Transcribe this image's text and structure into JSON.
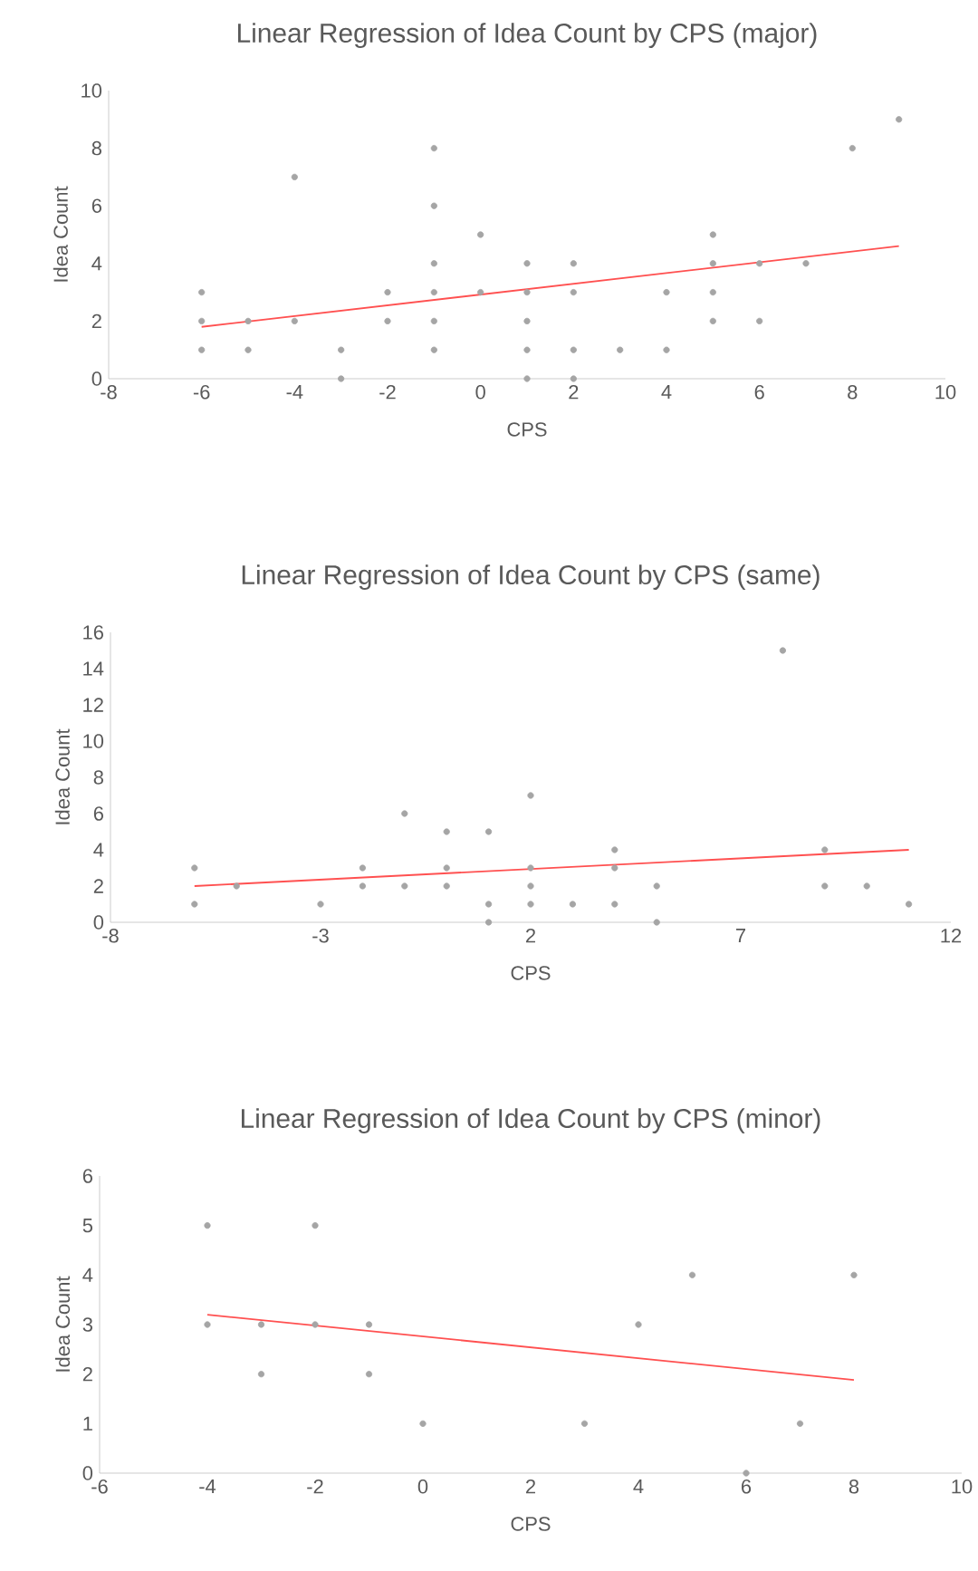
{
  "chart_data": [
    {
      "type": "scatter",
      "title": "Linear Regression of Idea Count by CPS (major)",
      "xlabel": "CPS",
      "ylabel": "Idea Count",
      "xlim": [
        -8,
        10
      ],
      "ylim": [
        0,
        10
      ],
      "xticks": [
        -8,
        -6,
        -4,
        -2,
        0,
        2,
        4,
        6,
        8,
        10
      ],
      "yticks": [
        0,
        2,
        4,
        6,
        8,
        10
      ],
      "marker": "circle",
      "series": [
        {
          "color": "#a5a5a5",
          "x": [
            -6,
            -6,
            -6,
            -5,
            -5,
            -4,
            -4,
            -3,
            -3,
            -2,
            -2,
            -1,
            -1,
            -1,
            -1,
            -1,
            -1,
            0,
            0,
            1,
            1,
            1,
            1,
            1,
            2,
            2,
            2,
            2,
            3,
            4,
            4,
            5,
            5,
            5,
            5,
            6,
            6,
            7,
            8,
            9
          ],
          "values": [
            3,
            2,
            1,
            2,
            1,
            7,
            2,
            1,
            0,
            3,
            2,
            8,
            6,
            4,
            3,
            2,
            1,
            5,
            3,
            4,
            3,
            2,
            1,
            0,
            4,
            3,
            1,
            0,
            1,
            3,
            1,
            5,
            4,
            3,
            2,
            4,
            2,
            4,
            8,
            9
          ]
        },
        {
          "type": "line",
          "color": "#ff5050",
          "marker": "none",
          "x": [
            -6,
            9
          ],
          "values": [
            1.8,
            4.6
          ]
        }
      ]
    },
    {
      "type": "scatter",
      "title": "Linear Regression of Idea Count by CPS (same)",
      "xlabel": "CPS",
      "ylabel": "Idea Count",
      "xlim": [
        -8,
        12
      ],
      "ylim": [
        0,
        16
      ],
      "xticks": [
        -8,
        -3,
        2,
        7,
        12
      ],
      "yticks": [
        0,
        2,
        4,
        6,
        8,
        10,
        12,
        14,
        16
      ],
      "marker": "circle",
      "series": [
        {
          "color": "#a5a5a5",
          "x": [
            -6,
            -6,
            -5,
            -3,
            -2,
            -2,
            -1,
            -1,
            0,
            0,
            0,
            1,
            1,
            1,
            2,
            2,
            2,
            2,
            3,
            4,
            4,
            4,
            5,
            5,
            8,
            9,
            9,
            10,
            11
          ],
          "values": [
            3,
            1,
            2,
            1,
            3,
            2,
            6,
            2,
            5,
            3,
            2,
            5,
            1,
            0,
            7,
            3,
            2,
            1,
            1,
            4,
            3,
            1,
            2,
            0,
            15,
            4,
            2,
            2,
            1
          ]
        },
        {
          "type": "line",
          "color": "#ff5050",
          "marker": "none",
          "x": [
            -6,
            11
          ],
          "values": [
            2.0,
            4.0
          ]
        }
      ]
    },
    {
      "type": "scatter",
      "title": "Linear Regression of Idea Count by CPS (minor)",
      "xlabel": "CPS",
      "ylabel": "Idea Count",
      "xlim": [
        -6,
        10
      ],
      "ylim": [
        0,
        6
      ],
      "xticks": [
        -6,
        -4,
        -2,
        0,
        2,
        4,
        6,
        8,
        10
      ],
      "yticks": [
        0,
        1,
        2,
        3,
        4,
        5,
        6
      ],
      "marker": "circle",
      "series": [
        {
          "color": "#a5a5a5",
          "x": [
            -4,
            -4,
            -3,
            -3,
            -2,
            -2,
            -1,
            -1,
            0,
            3,
            4,
            5,
            6,
            7,
            8
          ],
          "values": [
            5,
            3,
            3,
            2,
            5,
            3,
            3,
            2,
            1,
            1,
            3,
            4,
            0,
            1,
            4
          ]
        },
        {
          "type": "line",
          "color": "#ff5050",
          "marker": "none",
          "x": [
            -4,
            8
          ],
          "values": [
            3.2,
            1.88
          ]
        }
      ]
    }
  ]
}
